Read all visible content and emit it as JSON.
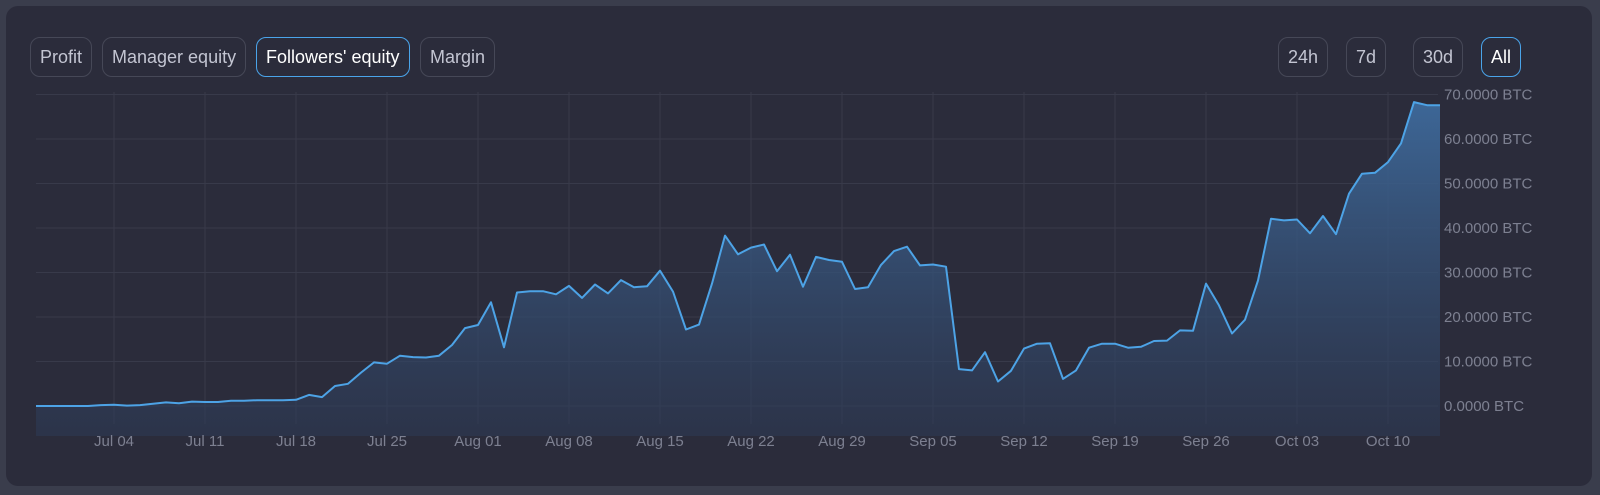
{
  "metric_tabs": [
    {
      "label": "Profit",
      "active": false
    },
    {
      "label": "Manager equity",
      "active": false
    },
    {
      "label": "Followers' equity",
      "active": true
    },
    {
      "label": "Margin",
      "active": false
    }
  ],
  "range_tabs": [
    {
      "label": "24h",
      "active": false
    },
    {
      "label": "7d",
      "active": false
    },
    {
      "label": "30d",
      "active": false
    },
    {
      "label": "All",
      "active": true
    }
  ],
  "colors": {
    "accent": "#4aa4ea",
    "line": "#4da3e6",
    "background": "#2b2c3b",
    "grid": "#383a4a",
    "text": "#7d8091"
  },
  "chart_data": {
    "type": "area",
    "title": "",
    "xlabel": "",
    "ylabel": "",
    "unit": "BTC",
    "ylim": [
      -7,
      70
    ],
    "grid": true,
    "x_ticks": [
      "Jul 04",
      "Jul 11",
      "Jul 18",
      "Jul 25",
      "Aug 01",
      "Aug 08",
      "Aug 15",
      "Aug 22",
      "Aug 29",
      "Sep 05",
      "Sep 12",
      "Sep 19",
      "Sep 26",
      "Oct 03",
      "Oct 10"
    ],
    "y_ticks": [
      "0.0000 BTC",
      "10.0000 BTC",
      "20.0000 BTC",
      "30.0000 BTC",
      "40.0000 BTC",
      "50.0000 BTC",
      "60.0000 BTC",
      "70.0000 BTC"
    ],
    "series": [
      {
        "values": [
          [
            "Jun 28",
            0.0
          ],
          [
            "Jun 29",
            0.0
          ],
          [
            "Jun 30",
            0.0
          ],
          [
            "Jul 01",
            0.0
          ],
          [
            "Jul 02",
            0.0
          ],
          [
            "Jul 03",
            0.2
          ],
          [
            "Jul 04",
            0.3
          ],
          [
            "Jul 05",
            0.1
          ],
          [
            "Jul 06",
            0.2
          ],
          [
            "Jul 07",
            0.5
          ],
          [
            "Jul 08",
            0.8
          ],
          [
            "Jul 09",
            0.6
          ],
          [
            "Jul 10",
            1.0
          ],
          [
            "Jul 11",
            0.9
          ],
          [
            "Jul 12",
            0.9
          ],
          [
            "Jul 13",
            1.2
          ],
          [
            "Jul 14",
            1.2
          ],
          [
            "Jul 15",
            1.3
          ],
          [
            "Jul 16",
            1.3
          ],
          [
            "Jul 17",
            1.3
          ],
          [
            "Jul 18",
            1.4
          ],
          [
            "Jul 19",
            2.5
          ],
          [
            "Jul 20",
            2.0
          ],
          [
            "Jul 21",
            4.5
          ],
          [
            "Jul 22",
            5.0
          ],
          [
            "Jul 23",
            7.5
          ],
          [
            "Jul 24",
            9.8
          ],
          [
            "Jul 25",
            9.5
          ],
          [
            "Jul 26",
            11.3
          ],
          [
            "Jul 27",
            11.0
          ],
          [
            "Jul 28",
            10.9
          ],
          [
            "Jul 29",
            11.3
          ],
          [
            "Jul 30",
            13.7
          ],
          [
            "Jul 31",
            17.5
          ],
          [
            "Aug 01",
            18.2
          ],
          [
            "Aug 02",
            23.3
          ],
          [
            "Aug 03",
            13.2
          ],
          [
            "Aug 04",
            25.5
          ],
          [
            "Aug 05",
            25.8
          ],
          [
            "Aug 06",
            25.8
          ],
          [
            "Aug 07",
            25.1
          ],
          [
            "Aug 08",
            27.0
          ],
          [
            "Aug 09",
            24.3
          ],
          [
            "Aug 10",
            27.3
          ],
          [
            "Aug 11",
            25.3
          ],
          [
            "Aug 12",
            28.3
          ],
          [
            "Aug 13",
            26.7
          ],
          [
            "Aug 14",
            26.9
          ],
          [
            "Aug 15",
            30.4
          ],
          [
            "Aug 16",
            25.7
          ],
          [
            "Aug 17",
            17.2
          ],
          [
            "Aug 18",
            18.3
          ],
          [
            "Aug 19",
            27.5
          ],
          [
            "Aug 20",
            38.3
          ],
          [
            "Aug 21",
            34.1
          ],
          [
            "Aug 22",
            35.6
          ],
          [
            "Aug 23",
            36.3
          ],
          [
            "Aug 24",
            30.3
          ],
          [
            "Aug 25",
            34.0
          ],
          [
            "Aug 26",
            26.8
          ],
          [
            "Aug 27",
            33.5
          ],
          [
            "Aug 28",
            32.8
          ],
          [
            "Aug 29",
            32.4
          ],
          [
            "Aug 30",
            26.3
          ],
          [
            "Aug 31",
            26.7
          ],
          [
            "Sep 01",
            31.7
          ],
          [
            "Sep 02",
            34.8
          ],
          [
            "Sep 03",
            35.8
          ],
          [
            "Sep 04",
            31.6
          ],
          [
            "Sep 05",
            31.8
          ],
          [
            "Sep 06",
            31.3
          ],
          [
            "Sep 07",
            8.3
          ],
          [
            "Sep 08",
            8.0
          ],
          [
            "Sep 09",
            12.1
          ],
          [
            "Sep 10",
            5.5
          ],
          [
            "Sep 11",
            7.9
          ],
          [
            "Sep 12",
            12.9
          ],
          [
            "Sep 13",
            14.0
          ],
          [
            "Sep 14",
            14.1
          ],
          [
            "Sep 15",
            6.1
          ],
          [
            "Sep 16",
            8.0
          ],
          [
            "Sep 17",
            13.1
          ],
          [
            "Sep 18",
            14.0
          ],
          [
            "Sep 19",
            14.0
          ],
          [
            "Sep 20",
            13.1
          ],
          [
            "Sep 21",
            13.3
          ],
          [
            "Sep 22",
            14.6
          ],
          [
            "Sep 23",
            14.7
          ],
          [
            "Sep 24",
            17.0
          ],
          [
            "Sep 25",
            16.9
          ],
          [
            "Sep 26",
            27.5
          ],
          [
            "Sep 27",
            22.6
          ],
          [
            "Sep 28",
            16.3
          ],
          [
            "Sep 29",
            19.4
          ],
          [
            "Sep 30",
            28.2
          ],
          [
            "Oct 01",
            42.1
          ],
          [
            "Oct 02",
            41.7
          ],
          [
            "Oct 03",
            41.9
          ],
          [
            "Oct 04",
            38.8
          ],
          [
            "Oct 05",
            42.7
          ],
          [
            "Oct 06",
            38.6
          ],
          [
            "Oct 07",
            47.7
          ],
          [
            "Oct 08",
            52.2
          ],
          [
            "Oct 09",
            52.4
          ],
          [
            "Oct 10",
            54.8
          ],
          [
            "Oct 11",
            59.0
          ],
          [
            "Oct 12",
            68.3
          ],
          [
            "Oct 13",
            67.6
          ],
          [
            "Oct 14",
            67.6
          ]
        ]
      }
    ]
  }
}
